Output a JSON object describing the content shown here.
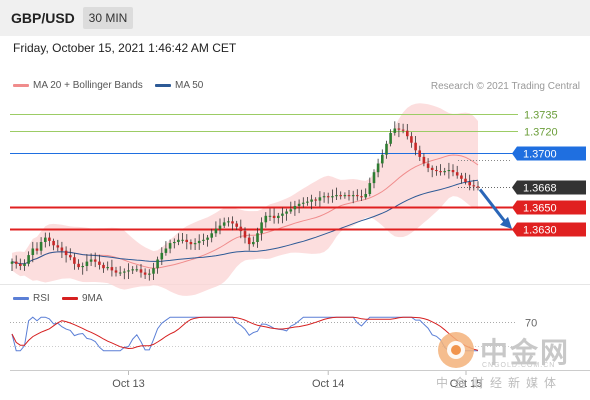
{
  "header": {
    "symbol": "GBP/USD",
    "timeframe": "30 MIN"
  },
  "datetime": "Friday, October 15, 2021 1:46:42 AM CET",
  "legend": {
    "items": [
      {
        "label": "MA 20 + Bollinger Bands",
        "color": "#f08c8c"
      },
      {
        "label": "MA 50",
        "color": "#2d5a96"
      }
    ],
    "credit": "Research © 2021 Trading Central"
  },
  "rsi_legend": {
    "items": [
      {
        "label": "RSI",
        "color": "#5b7fd6"
      },
      {
        "label": "9MA",
        "color": "#d62020"
      }
    ]
  },
  "watermark": {
    "logo_text": "中金网",
    "sub_text": "CNGOLD.COM.CN",
    "cn_text": "中金财经新媒体"
  },
  "chart_data": [
    {
      "type": "candlestick",
      "ylim": [
        1.3585,
        1.375
      ],
      "x_ticks": [
        "Oct 13",
        "Oct 14",
        "Oct 15"
      ],
      "levels": [
        {
          "label": "1.3735",
          "value": 1.3735,
          "kind": "resistance",
          "color": "#9ccc65"
        },
        {
          "label": "1.3720",
          "value": 1.372,
          "kind": "resistance",
          "color": "#9ccc65"
        },
        {
          "label": "1.3700",
          "value": 1.37,
          "kind": "pivot",
          "color": "#1f6fe0"
        },
        {
          "label": "1.3668",
          "value": 1.3668,
          "kind": "last_price",
          "color": "#333333"
        },
        {
          "label": "1.3650",
          "value": 1.365,
          "kind": "support",
          "color": "#e02020"
        },
        {
          "label": "1.3630",
          "value": 1.363,
          "kind": "support",
          "color": "#e02020"
        }
      ],
      "close": [
        1.36,
        1.3598,
        1.3596,
        1.3598,
        1.3606,
        1.3612,
        1.361,
        1.3618,
        1.3622,
        1.3619,
        1.3615,
        1.3613,
        1.361,
        1.3606,
        1.3604,
        1.3598,
        1.3595,
        1.3596,
        1.36,
        1.3602,
        1.36,
        1.3597,
        1.3594,
        1.3595,
        1.3592,
        1.359,
        1.359,
        1.3591,
        1.3592,
        1.3593,
        1.3593,
        1.359,
        1.3588,
        1.3589,
        1.3594,
        1.3602,
        1.3608,
        1.3612,
        1.3617,
        1.3618,
        1.362,
        1.362,
        1.3618,
        1.3616,
        1.3617,
        1.3619,
        1.362,
        1.3622,
        1.3626,
        1.363,
        1.3633,
        1.3636,
        1.3637,
        1.3635,
        1.3632,
        1.3628,
        1.3622,
        1.3616,
        1.3618,
        1.3626,
        1.3636,
        1.3642,
        1.3642,
        1.364,
        1.3642,
        1.3644,
        1.3646,
        1.3648,
        1.3651,
        1.3653,
        1.3654,
        1.3655,
        1.3657,
        1.3656,
        1.3659,
        1.366,
        1.3659,
        1.366,
        1.3661,
        1.366,
        1.3661,
        1.366,
        1.3661,
        1.366,
        1.3659,
        1.3662,
        1.3672,
        1.3682,
        1.369,
        1.3698,
        1.3708,
        1.3718,
        1.3722,
        1.3721,
        1.372,
        1.3715,
        1.3709,
        1.3702,
        1.3696,
        1.369,
        1.3686,
        1.3684,
        1.3683,
        1.3682,
        1.3683,
        1.3684,
        1.3682,
        1.3679,
        1.3676,
        1.3673,
        1.367,
        1.3669,
        1.3668
      ],
      "rsi_ylim": [
        20,
        80
      ],
      "rsi_level": 70,
      "rsi_ticks": [
        "70"
      ]
    }
  ]
}
